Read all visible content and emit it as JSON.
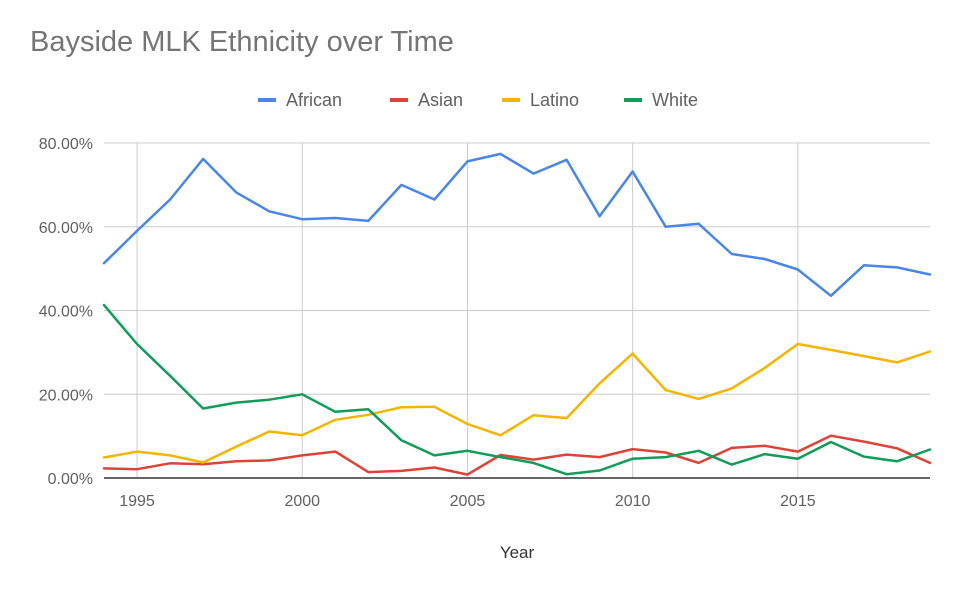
{
  "chart_data": {
    "type": "line",
    "title": "Bayside MLK Ethnicity over Time",
    "xlabel": "Year",
    "ylabel": "",
    "xlim": [
      1994,
      2019
    ],
    "ylim": [
      0,
      80
    ],
    "x_ticks": [
      1995,
      2000,
      2005,
      2010,
      2015
    ],
    "y_ticks": [
      "0.00%",
      "20.00%",
      "40.00%",
      "60.00%",
      "80.00%"
    ],
    "y_tick_values": [
      0,
      20,
      40,
      60,
      80
    ],
    "legend_position": "top",
    "grid": true,
    "x": [
      1994,
      1995,
      1996,
      1997,
      1998,
      1999,
      2000,
      2001,
      2002,
      2003,
      2004,
      2005,
      2006,
      2007,
      2008,
      2009,
      2010,
      2011,
      2012,
      2013,
      2014,
      2015,
      2016,
      2017,
      2018,
      2019
    ],
    "series": [
      {
        "name": "African",
        "color": "#4a86e8",
        "values": [
          51.3,
          59.0,
          66.5,
          76.2,
          68.2,
          63.7,
          61.8,
          62.1,
          61.4,
          70.0,
          66.5,
          75.6,
          77.4,
          72.7,
          76.0,
          62.5,
          73.2,
          60.0,
          60.7,
          53.5,
          52.3,
          49.8,
          43.5,
          50.8,
          50.3,
          48.6
        ]
      },
      {
        "name": "Asian",
        "color": "#db4437",
        "values": [
          2.3,
          2.1,
          3.5,
          3.3,
          4.0,
          4.2,
          5.4,
          6.3,
          1.4,
          1.7,
          2.5,
          0.8,
          5.5,
          4.4,
          5.6,
          5.0,
          6.9,
          6.1,
          3.6,
          7.2,
          7.7,
          6.3,
          10.1,
          8.7,
          7.1,
          3.6
        ]
      },
      {
        "name": "Latino",
        "color": "#f4b400",
        "values": [
          4.9,
          6.3,
          5.4,
          3.7,
          7.5,
          11.1,
          10.2,
          13.9,
          15.1,
          16.9,
          17.0,
          12.9,
          10.2,
          15.0,
          14.3,
          22.6,
          29.7,
          21.0,
          18.9,
          21.4,
          26.3,
          32.0,
          30.6,
          29.1,
          27.6,
          30.2
        ]
      },
      {
        "name": "White",
        "color": "#0f9d58",
        "values": [
          41.3,
          32.0,
          24.4,
          16.6,
          18.0,
          18.7,
          20.0,
          15.8,
          16.4,
          9.0,
          5.4,
          6.5,
          5.0,
          3.6,
          0.9,
          1.8,
          4.6,
          5.0,
          6.5,
          3.2,
          5.7,
          4.6,
          8.6,
          5.1,
          4.0,
          6.8
        ]
      }
    ]
  }
}
